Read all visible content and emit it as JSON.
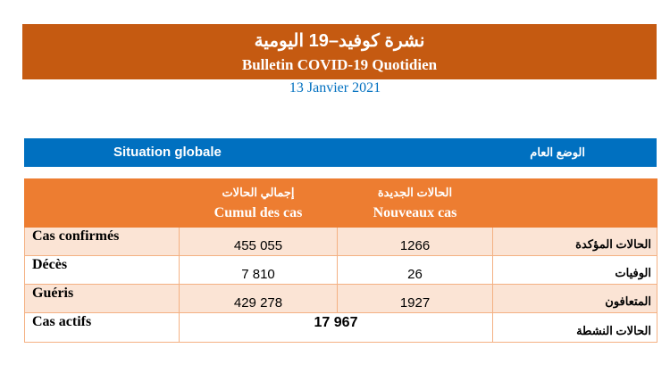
{
  "header": {
    "title_ar": "نشرة كوفيد–19 اليومية",
    "title_fr": "Bulletin COVID-19 Quotidien",
    "date": "13 Janvier 2021"
  },
  "section": {
    "title_fr": "Situation globale",
    "title_ar": "الوضع العام"
  },
  "table": {
    "columns": [
      {
        "ar": "إجمالي الحالات",
        "fr": "Cumul des cas"
      },
      {
        "ar": "الحالات الجديدة",
        "fr": "Nouveaux cas"
      }
    ],
    "rows": [
      {
        "fr": "Cas confirmés",
        "cumul": "455 055",
        "nouveaux": "1266",
        "ar": "الحالات المؤكدة"
      },
      {
        "fr": "Décès",
        "cumul": "7 810",
        "nouveaux": "26",
        "ar": "الوفيات"
      },
      {
        "fr": "Guéris",
        "cumul": "429 278",
        "nouveaux": "1927",
        "ar": "المتعافون"
      }
    ],
    "active": {
      "fr": "Cas actifs",
      "value": "17 967",
      "ar": "الحالات النشطة"
    }
  },
  "colors": {
    "banner": "#c55a11",
    "header": "#ed7d31",
    "row_alt": "#fbe4d5",
    "blue": "#0070c0"
  }
}
